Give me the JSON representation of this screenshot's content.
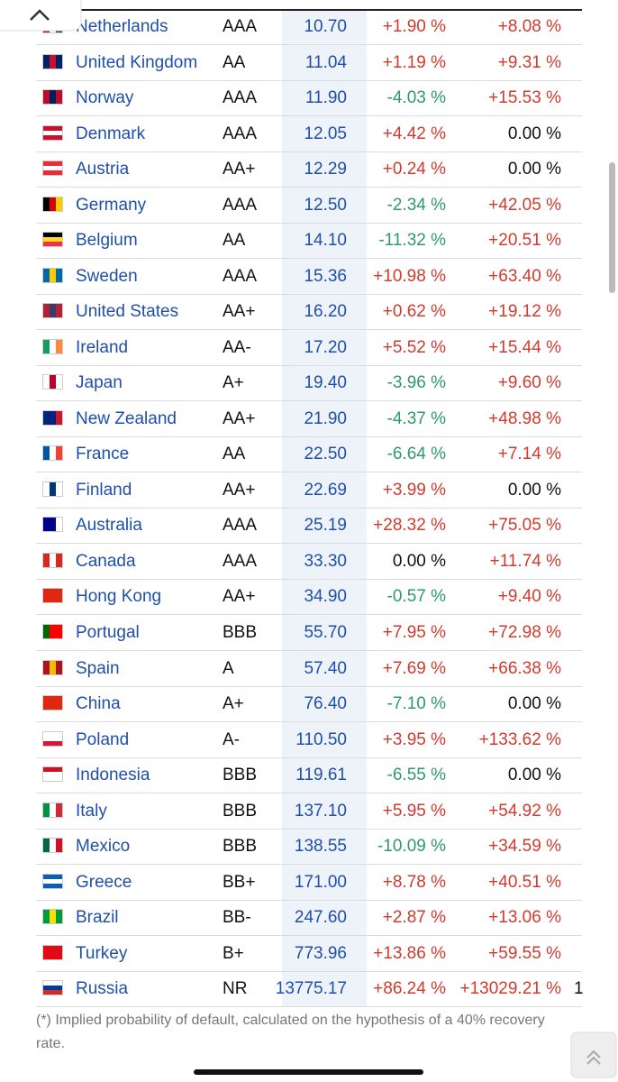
{
  "table": {
    "rows": [
      [
        "Netherlands",
        "AAA",
        "10.70",
        "+1.90 %",
        "+8.08 %"
      ],
      [
        "United Kingdom",
        "AA",
        "11.04",
        "+1.19 %",
        "+9.31 %"
      ],
      [
        "Norway",
        "AAA",
        "11.90",
        "-4.03 %",
        "+15.53 %"
      ],
      [
        "Denmark",
        "AAA",
        "12.05",
        "+4.42 %",
        "0.00 %"
      ],
      [
        "Austria",
        "AA+",
        "12.29",
        "+0.24 %",
        "0.00 %"
      ],
      [
        "Germany",
        "AAA",
        "12.50",
        "-2.34 %",
        "+42.05 %"
      ],
      [
        "Belgium",
        "AA",
        "14.10",
        "-11.32 %",
        "+20.51 %"
      ],
      [
        "Sweden",
        "AAA",
        "15.36",
        "+10.98 %",
        "+63.40 %"
      ],
      [
        "United States",
        "AA+",
        "16.20",
        "+0.62 %",
        "+19.12 %"
      ],
      [
        "Ireland",
        "AA-",
        "17.20",
        "+5.52 %",
        "+15.44 %"
      ],
      [
        "Japan",
        "A+",
        "19.40",
        "-3.96 %",
        "+9.60 %"
      ],
      [
        "New Zealand",
        "AA+",
        "21.90",
        "-4.37 %",
        "+48.98 %"
      ],
      [
        "France",
        "AA",
        "22.50",
        "-6.64 %",
        "+7.14 %"
      ],
      [
        "Finland",
        "AA+",
        "22.69",
        "+3.99 %",
        "0.00 %"
      ],
      [
        "Australia",
        "AAA",
        "25.19",
        "+28.32 %",
        "+75.05 %"
      ],
      [
        "Canada",
        "AAA",
        "33.30",
        "0.00 %",
        "+11.74 %"
      ],
      [
        "Hong Kong",
        "AA+",
        "34.90",
        "-0.57 %",
        "+9.40 %"
      ],
      [
        "Portugal",
        "BBB",
        "55.70",
        "+7.95 %",
        "+72.98 %"
      ],
      [
        "Spain",
        "A",
        "57.40",
        "+7.69 %",
        "+66.38 %"
      ],
      [
        "China",
        "A+",
        "76.40",
        "-7.10 %",
        "0.00 %"
      ],
      [
        "Poland",
        "A-",
        "110.50",
        "+3.95 %",
        "+133.62 %"
      ],
      [
        "Indonesia",
        "BBB",
        "119.61",
        "-6.55 %",
        "0.00 %"
      ],
      [
        "Italy",
        "BBB",
        "137.10",
        "+5.95 %",
        "+54.92 %"
      ],
      [
        "Mexico",
        "BBB",
        "138.55",
        "-10.09 %",
        "+34.59 %"
      ],
      [
        "Greece",
        "BB+",
        "171.00",
        "+8.78 %",
        "+40.51 %"
      ],
      [
        "Brazil",
        "BB-",
        "247.60",
        "+2.87 %",
        "+13.06 %"
      ],
      [
        "Turkey",
        "B+",
        "773.96",
        "+13.86 %",
        "+59.55 %"
      ],
      [
        "Russia",
        "NR",
        "13775.17",
        "+86.24 %",
        "+13029.21 %",
        "1"
      ]
    ]
  },
  "footnote": "(*) Implied probability of default, calculated on the hypothesis of a 40% recovery rate."
}
